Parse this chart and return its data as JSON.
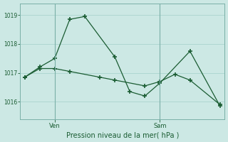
{
  "title": "Pression niveau de la mer( hPa )",
  "background_color": "#cce8e4",
  "grid_color": "#aad4ce",
  "line_color": "#1a5c32",
  "ylim": [
    1015.4,
    1019.4
  ],
  "yticks": [
    1016,
    1017,
    1018,
    1019
  ],
  "xlim": [
    -0.3,
    13.3
  ],
  "ven_x": 2.0,
  "sam_x": 9.0,
  "num_gridlines_x": 12,
  "series1_x": [
    0,
    1,
    2,
    3,
    4,
    6,
    7,
    8,
    9,
    11,
    13
  ],
  "series1_y": [
    1016.85,
    1017.2,
    1017.5,
    1018.85,
    1018.95,
    1017.55,
    1016.35,
    1016.2,
    1016.65,
    1017.75,
    1015.85
  ],
  "series2_x": [
    0,
    1,
    2,
    3,
    5,
    6,
    8,
    9,
    10,
    11,
    13
  ],
  "series2_y": [
    1016.85,
    1017.15,
    1017.15,
    1017.05,
    1016.85,
    1016.75,
    1016.55,
    1016.7,
    1016.95,
    1016.75,
    1015.9
  ]
}
